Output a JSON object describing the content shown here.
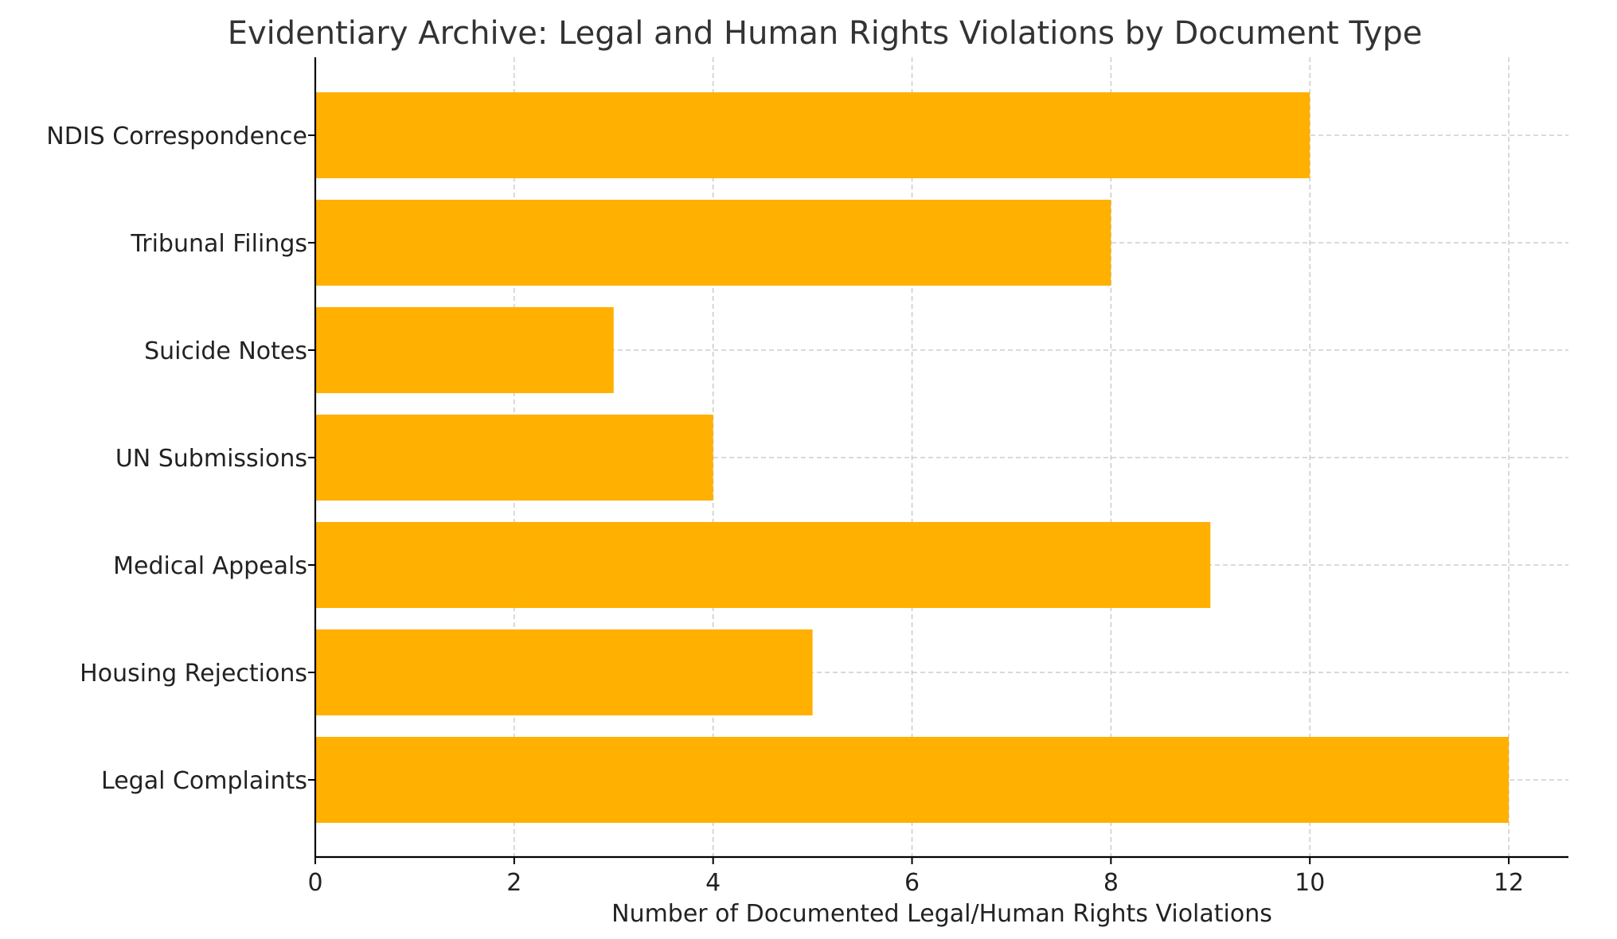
{
  "chart_data": {
    "type": "bar",
    "orientation": "horizontal",
    "title": "Evidentiary Archive: Legal and Human Rights Violations by Document Type",
    "xlabel": "Number of Documented Legal/Human Rights Violations",
    "ylabel": "",
    "categories": [
      "Legal Complaints",
      "Housing Rejections",
      "Medical Appeals",
      "UN Submissions",
      "Suicide Notes",
      "Tribunal Filings",
      "NDIS Correspondence"
    ],
    "values": [
      12,
      5,
      9,
      4,
      3,
      8,
      10
    ],
    "xlim": [
      0,
      12.6
    ],
    "xticks": [
      0,
      2,
      4,
      6,
      8,
      10,
      12
    ],
    "grid": true,
    "legend": "none",
    "bar_color": "#FFB000"
  }
}
